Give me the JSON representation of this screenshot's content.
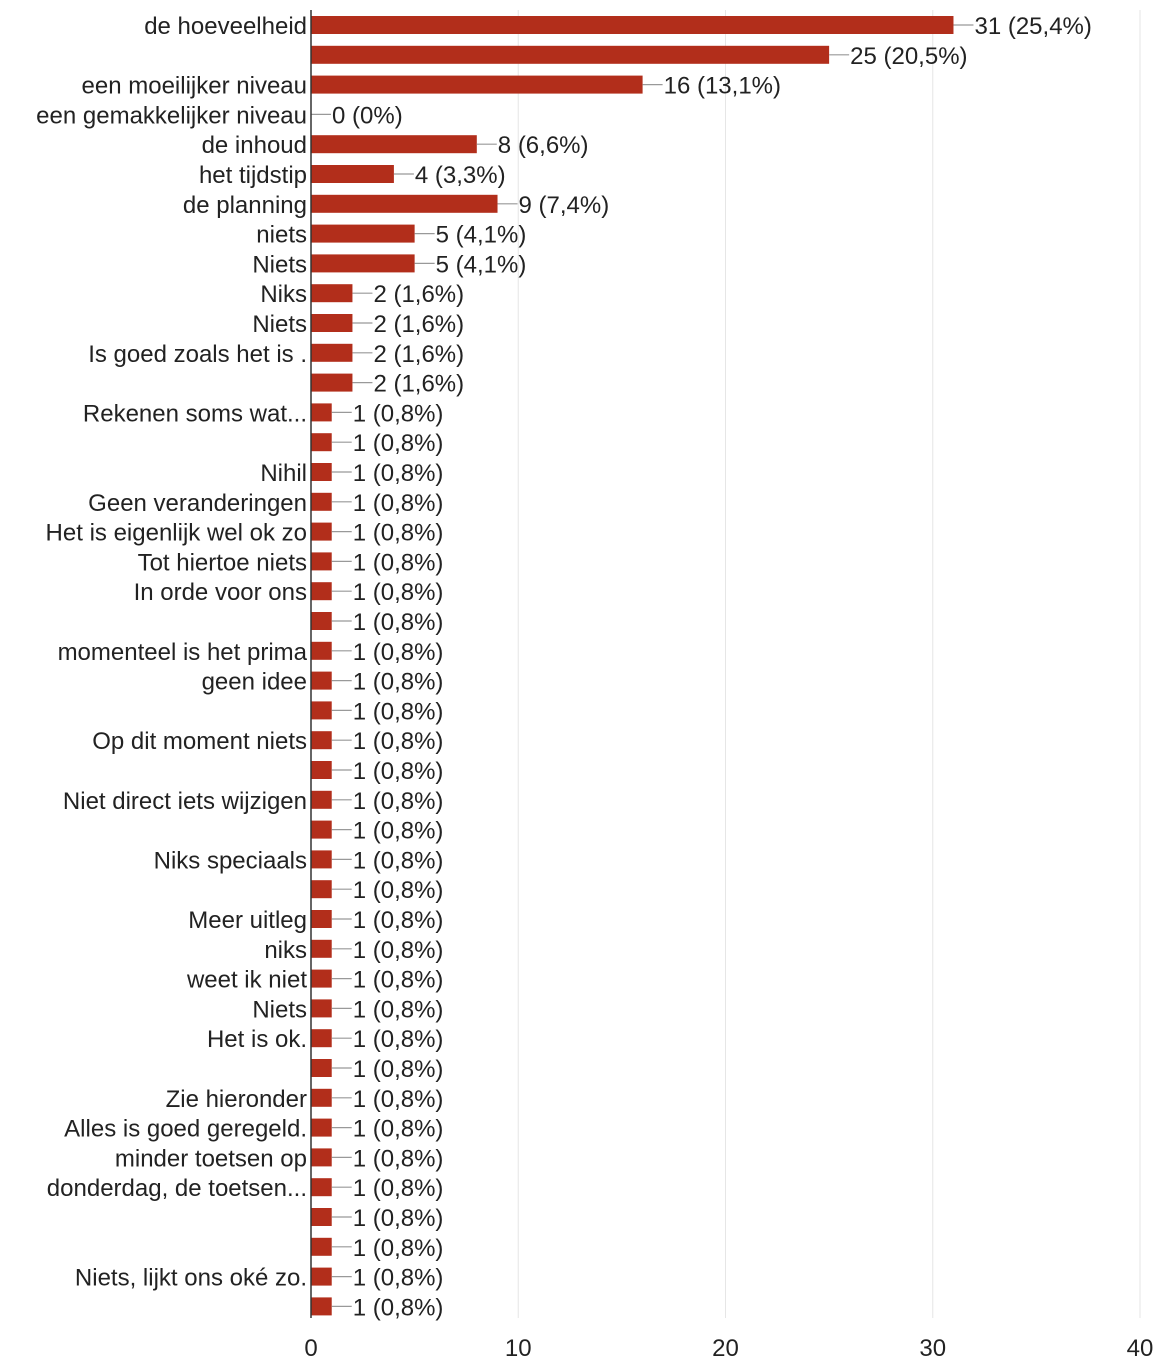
{
  "chart_data": {
    "type": "bar",
    "orientation": "horizontal",
    "title": "",
    "xlabel": "",
    "ylabel": "",
    "xlim": [
      0,
      40
    ],
    "xticks": [
      0,
      10,
      20,
      30,
      40
    ],
    "grid": true,
    "bar_color": "#b22e1b",
    "categories": [
      "de hoeveelheid",
      "",
      "een moeilijker niveau",
      "een gemakkelijker niveau",
      "de inhoud",
      "het tijdstip",
      "de planning",
      "niets",
      "Niets",
      "Niks",
      "Niets",
      "Is goed zoals het is .",
      "",
      "Rekenen soms wat...",
      "",
      "Nihil",
      "Geen veranderingen",
      "Het is eigenlijk wel ok zo",
      "Tot hiertoe niets",
      "In orde voor ons",
      "",
      "momenteel is het prima",
      "geen idee",
      "",
      "Op dit moment niets",
      "",
      "Niet direct iets wijzigen",
      "",
      "Niks speciaals",
      "",
      "Meer uitleg",
      "niks",
      "weet ik niet",
      "Niets",
      "Het is ok.",
      "",
      "Zie hieronder",
      "Alles is goed geregeld.",
      "minder toetsen op",
      "donderdag, de toetsen...",
      "",
      "",
      "Niets, lijkt ons oké zo.",
      ""
    ],
    "values": [
      31,
      25,
      16,
      0,
      8,
      4,
      9,
      5,
      5,
      2,
      2,
      2,
      2,
      1,
      1,
      1,
      1,
      1,
      1,
      1,
      1,
      1,
      1,
      1,
      1,
      1,
      1,
      1,
      1,
      1,
      1,
      1,
      1,
      1,
      1,
      1,
      1,
      1,
      1,
      1,
      1,
      1,
      1,
      1
    ],
    "value_labels": [
      "31 (25,4%)",
      "25 (20,5%)",
      "16 (13,1%)",
      "0 (0%)",
      "8 (6,6%)",
      "4 (3,3%)",
      "9 (7,4%)",
      "5 (4,1%)",
      "5 (4,1%)",
      "2 (1,6%)",
      "2 (1,6%)",
      "2 (1,6%)",
      "2 (1,6%)",
      "1 (0,8%)",
      "1 (0,8%)",
      "1 (0,8%)",
      "1 (0,8%)",
      "1 (0,8%)",
      "1 (0,8%)",
      "1 (0,8%)",
      "1 (0,8%)",
      "1 (0,8%)",
      "1 (0,8%)",
      "1 (0,8%)",
      "1 (0,8%)",
      "1 (0,8%)",
      "1 (0,8%)",
      "1 (0,8%)",
      "1 (0,8%)",
      "1 (0,8%)",
      "1 (0,8%)",
      "1 (0,8%)",
      "1 (0,8%)",
      "1 (0,8%)",
      "1 (0,8%)",
      "1 (0,8%)",
      "1 (0,8%)",
      "1 (0,8%)",
      "1 (0,8%)",
      "1 (0,8%)",
      "1 (0,8%)",
      "1 (0,8%)",
      "1 (0,8%)",
      "1 (0,8%)"
    ]
  }
}
